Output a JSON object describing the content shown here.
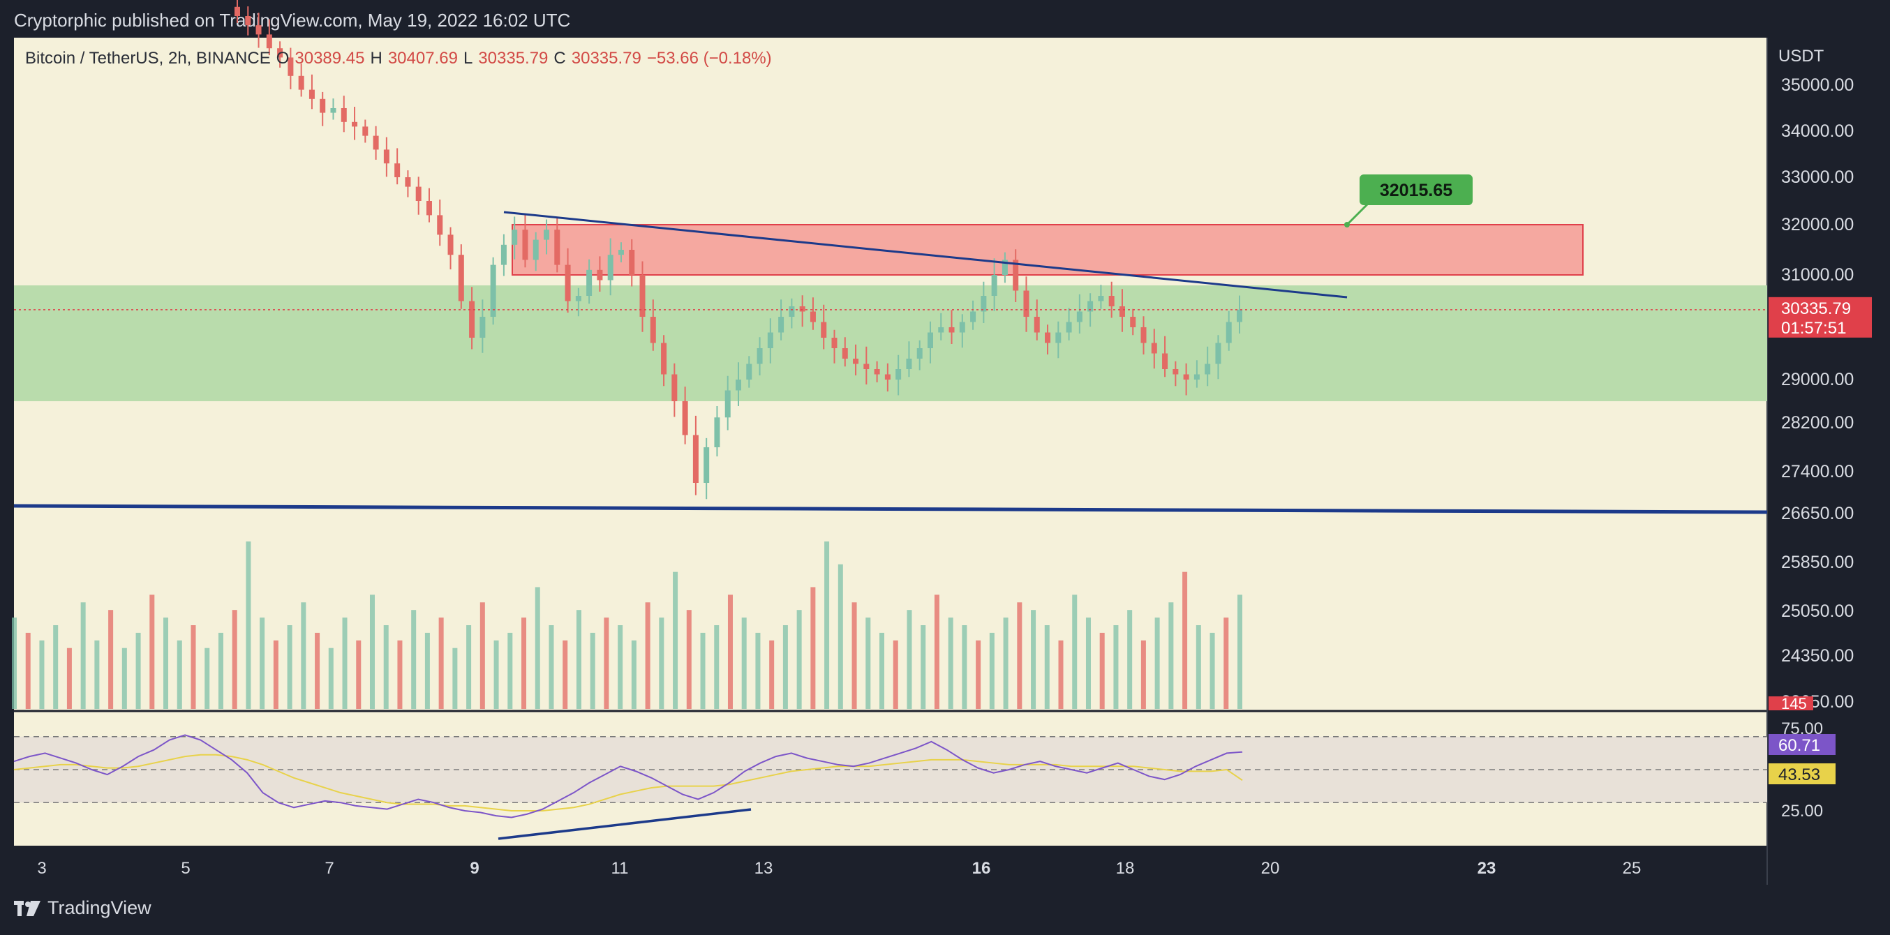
{
  "header": {
    "published": "Cryptorphic published on TradingView.com, May 19, 2022 16:02 UTC"
  },
  "footer": {
    "brand": "TradingView",
    "logo_icon": "tradingview-logo-icon"
  },
  "symbol": {
    "name": "Bitcoin / TetherUS, 2h, BINANCE",
    "open_label": "O",
    "open": "30389.45",
    "high_label": "H",
    "high": "30407.69",
    "low_label": "L",
    "low": "30335.79",
    "close_label": "C",
    "close": "30335.79",
    "change": "−53.66 (−0.18%)"
  },
  "colors": {
    "up": "#7dc0a8",
    "down": "#e36a64",
    "background": "#f5f1da",
    "green_zone": "#b9dcac",
    "red_zone": "#f5a8a0",
    "trendline": "#1c3a8a",
    "rsi": "#7c55c8",
    "rsi_ma": "#e8d24a"
  },
  "chart_data": [
    {
      "type": "candlestick",
      "title": "Bitcoin / TetherUS, 2h, BINANCE",
      "ylabel": "USDT",
      "y_ticks": [
        "35000.00",
        "34000.00",
        "33000.00",
        "32000.00",
        "31000.00",
        "29000.00",
        "28200.00",
        "27400.00",
        "26650.00",
        "25850.00",
        "25050.00",
        "24350.00",
        "23650.00"
      ],
      "x_ticks": [
        "3",
        "5",
        "7",
        "9",
        "11",
        "13",
        "16",
        "18",
        "20",
        "23",
        "25"
      ],
      "x_ticks_bold": [
        "9",
        "16",
        "23"
      ],
      "last_price": "30335.79",
      "countdown": "01:57:51",
      "zones": [
        {
          "name": "resistance",
          "low": 31000,
          "high": 32000,
          "color": "#f5a8a0"
        },
        {
          "name": "support",
          "low": 28600,
          "high": 30800,
          "color": "#b9dcac"
        }
      ],
      "trendlines": [
        {
          "from": [
            "May 9",
            32200
          ],
          "to": [
            "May 21",
            30700
          ]
        },
        {
          "from": [
            "May 3",
            26800
          ],
          "to": [
            "May 27",
            26650
          ]
        }
      ],
      "annotation": {
        "label": "32015.65"
      },
      "closes": [
        36500,
        36300,
        36100,
        35800,
        35600,
        35200,
        34900,
        34700,
        34400,
        34500,
        34200,
        34100,
        33900,
        33600,
        33300,
        33000,
        32800,
        32500,
        32200,
        31800,
        31400,
        30500,
        29800,
        30200,
        31200,
        31600,
        31900,
        31300,
        31700,
        31900,
        31200,
        30500,
        30600,
        31100,
        30900,
        31400,
        31500,
        31000,
        30200,
        29700,
        29100,
        28600,
        28000,
        27200,
        27800,
        28300,
        28800,
        29000,
        29300,
        29600,
        29900,
        30200,
        30400,
        30300,
        30100,
        29800,
        29600,
        29400,
        29300,
        29200,
        29100,
        29000,
        29200,
        29400,
        29600,
        29900,
        30000,
        29900,
        30100,
        30300,
        30600,
        31000,
        31300,
        30700,
        30200,
        29900,
        29700,
        29900,
        30100,
        30300,
        30500,
        30600,
        30400,
        30200,
        30000,
        29700,
        29500,
        29200,
        29100,
        29000,
        29100,
        29300,
        29700,
        30100,
        30335.79
      ]
    },
    {
      "type": "bar",
      "title": "Volume",
      "last_label": "145",
      "values": [
        12,
        10,
        9,
        11,
        8,
        14,
        9,
        13,
        8,
        10,
        15,
        12,
        9,
        11,
        8,
        10,
        13,
        22,
        12,
        9,
        11,
        14,
        10,
        8,
        12,
        9,
        15,
        11,
        9,
        13,
        10,
        12,
        8,
        11,
        14,
        9,
        10,
        12,
        16,
        11,
        9,
        13,
        10,
        12,
        11,
        9,
        14,
        12,
        18,
        13,
        10,
        11,
        15,
        12,
        10,
        9,
        11,
        13,
        16,
        22,
        19,
        14,
        12,
        10,
        9,
        13,
        11,
        15,
        12,
        11,
        9,
        10,
        12,
        14,
        13,
        11,
        9,
        15,
        12,
        10,
        11,
        13,
        9,
        12,
        14,
        18,
        11,
        10,
        12,
        15
      ]
    },
    {
      "type": "line",
      "title": "RSI",
      "y_ticks": [
        "75.00",
        "50.00",
        "25.00"
      ],
      "band": [
        30,
        70
      ],
      "rsi_value": "60.71",
      "ma_value": "43.53",
      "series": [
        {
          "values": [
            55,
            58,
            60,
            57,
            54,
            50,
            47,
            52,
            58,
            62,
            68,
            71,
            68,
            62,
            56,
            48,
            36,
            30,
            27,
            29,
            31,
            30,
            28,
            27,
            26,
            29,
            32,
            30,
            27,
            25,
            24,
            22,
            21,
            23,
            26,
            31,
            36,
            42,
            47,
            52,
            49,
            45,
            40,
            35,
            32,
            36,
            42,
            49,
            54,
            58,
            60,
            57,
            55,
            53,
            52,
            54,
            57,
            60,
            63,
            67,
            62,
            56,
            51,
            48,
            50,
            53,
            55,
            52,
            50,
            48,
            51,
            54,
            50,
            46,
            44,
            47,
            52,
            56,
            60,
            60.71
          ]
        },
        {
          "values": [
            50,
            51,
            52,
            53,
            53,
            52,
            51,
            51,
            52,
            54,
            56,
            58,
            59,
            59,
            58,
            56,
            53,
            49,
            45,
            42,
            39,
            36,
            34,
            32,
            30,
            29,
            29,
            29,
            28,
            28,
            27,
            26,
            25,
            25,
            25,
            26,
            27,
            29,
            32,
            35,
            37,
            39,
            40,
            40,
            40,
            40,
            41,
            43,
            45,
            47,
            49,
            50,
            51,
            52,
            52,
            52,
            53,
            54,
            55,
            56,
            56,
            56,
            55,
            54,
            53,
            53,
            53,
            53,
            52,
            52,
            52,
            52,
            52,
            51,
            50,
            49,
            49,
            49,
            50,
            43.53
          ]
        }
      ]
    }
  ]
}
